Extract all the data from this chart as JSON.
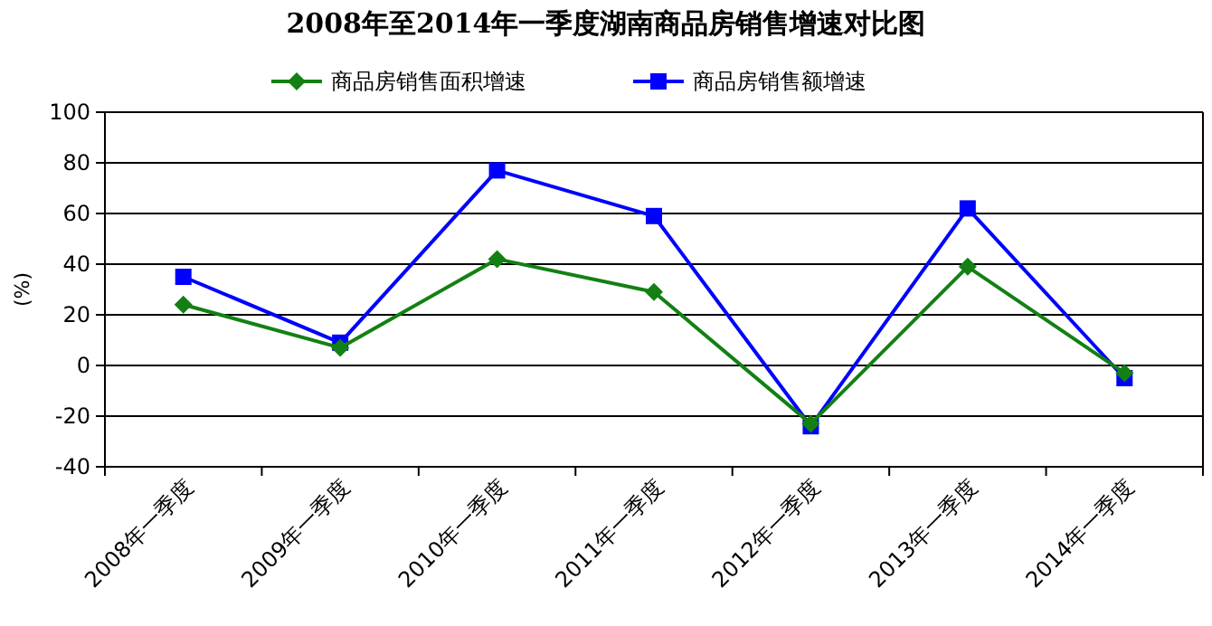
{
  "chart_data": {
    "type": "line",
    "title": "2008年至2014年一季度湖南商品房销售增速对比图",
    "ylabel": "(%)",
    "categories": [
      "2008年一季度",
      "2009年一季度",
      "2010年一季度",
      "2011年一季度",
      "2012年一季度",
      "2013年一季度",
      "2014年一季度"
    ],
    "series": [
      {
        "name": "商品房销售面积增速",
        "color": "#138013",
        "marker": "diamond",
        "values": [
          24,
          7,
          42,
          29,
          -23,
          39,
          -3
        ]
      },
      {
        "name": "商品房销售额增速",
        "color": "#0000ff",
        "marker": "square",
        "values": [
          35,
          9,
          77,
          59,
          -24,
          62,
          -5
        ]
      }
    ],
    "ylim": [
      -40,
      100
    ],
    "yticks": [
      -40,
      -20,
      0,
      20,
      40,
      60,
      80,
      100
    ],
    "grid": "y",
    "legend": "top",
    "line_style": "solid"
  }
}
